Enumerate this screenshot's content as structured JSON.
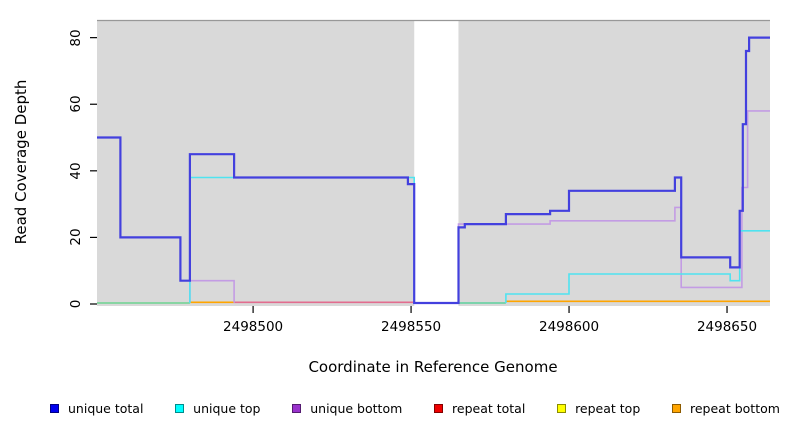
{
  "chart_data": {
    "type": "line",
    "subtype": "step-coverage-plot",
    "title": "",
    "xlabel": "Coordinate in Reference Genome",
    "ylabel": "Read Coverage Depth",
    "xlim": [
      2498450.6,
      2498663.6
    ],
    "ylim": [
      0,
      85.3
    ],
    "grid": "off",
    "panel_color": "#D9D9D9",
    "panel_top_border_color": "#989898",
    "masked_region": {
      "from": 2498551,
      "to": 2498565,
      "color": "#FFFFFF"
    },
    "x_ticks": [
      {
        "value": 2498500,
        "label": "2498500"
      },
      {
        "value": 2498550,
        "label": "2498550"
      },
      {
        "value": 2498600,
        "label": "2498600"
      },
      {
        "value": 2498650,
        "label": "2498650"
      }
    ],
    "y_ticks": [
      {
        "value": 0,
        "label": "0"
      },
      {
        "value": 20,
        "label": "20"
      },
      {
        "value": 40,
        "label": "40"
      },
      {
        "value": 60,
        "label": "60"
      },
      {
        "value": 80,
        "label": "80"
      }
    ],
    "series": [
      {
        "name": "unique total",
        "line_color": "#4340DE",
        "line_width": 2.2,
        "runs": [
          [
            [
              2498450.6,
              50
            ],
            [
              2498458,
              50
            ],
            [
              2498458,
              20
            ],
            [
              2498477,
              20
            ],
            [
              2498477,
              7
            ],
            [
              2498480,
              7
            ],
            [
              2498480,
              45
            ],
            [
              2498494,
              45
            ],
            [
              2498494,
              38
            ],
            [
              2498549,
              38
            ],
            [
              2498549,
              36
            ],
            [
              2498551,
              36
            ],
            [
              2498551,
              0.3
            ],
            [
              2498565,
              0.3
            ],
            [
              2498565,
              23
            ],
            [
              2498567,
              23
            ],
            [
              2498567,
              24
            ],
            [
              2498580,
              24
            ],
            [
              2498580,
              27
            ],
            [
              2498594,
              27
            ],
            [
              2498594,
              28
            ],
            [
              2498600,
              28
            ],
            [
              2498600,
              34
            ],
            [
              2498633.5,
              34
            ],
            [
              2498633.5,
              38
            ],
            [
              2498635.5,
              38
            ],
            [
              2498635.5,
              14
            ],
            [
              2498651,
              14
            ],
            [
              2498651,
              11
            ],
            [
              2498654,
              11
            ],
            [
              2498654,
              28
            ],
            [
              2498655,
              28
            ],
            [
              2498655,
              54
            ],
            [
              2498656,
              54
            ],
            [
              2498656,
              76
            ],
            [
              2498657,
              76
            ],
            [
              2498657,
              80
            ],
            [
              2498663.6,
              80
            ]
          ]
        ]
      },
      {
        "name": "unique top",
        "line_color": "#4FE3F0",
        "line_width": 1.6,
        "runs": [
          [
            [
              2498480,
              0.3
            ],
            [
              2498480,
              38
            ],
            [
              2498551,
              38
            ],
            [
              2498551,
              0.3
            ]
          ],
          [
            [
              2498580,
              0.3
            ],
            [
              2498580,
              3
            ],
            [
              2498600,
              3
            ],
            [
              2498600,
              9
            ],
            [
              2498651,
              9
            ],
            [
              2498651,
              7
            ],
            [
              2498654,
              7
            ],
            [
              2498654,
              22
            ],
            [
              2498663.6,
              22
            ]
          ]
        ]
      },
      {
        "name": "unique bottom",
        "line_color": "#C39CE4",
        "line_width": 1.6,
        "runs": [
          [
            [
              2498480,
              0.4
            ],
            [
              2498480,
              7
            ],
            [
              2498494,
              7
            ],
            [
              2498494,
              0.4
            ]
          ],
          [
            [
              2498565,
              0.4
            ],
            [
              2498565,
              24
            ],
            [
              2498594,
              24
            ],
            [
              2498594,
              25
            ],
            [
              2498633.5,
              25
            ],
            [
              2498633.5,
              29
            ],
            [
              2498635.5,
              29
            ],
            [
              2498635.5,
              5
            ],
            [
              2498654.7,
              5
            ],
            [
              2498654.7,
              35
            ],
            [
              2498656.5,
              35
            ],
            [
              2498656.5,
              58
            ],
            [
              2498663.6,
              58
            ]
          ]
        ]
      }
    ],
    "baseline_segments": [
      {
        "from": 2498450.6,
        "to": 2498480,
        "depth": 0.3,
        "color": "#7CD49B",
        "note": "overlapped zero lines (greenish blend)"
      },
      {
        "from": 2498480,
        "to": 2498494,
        "depth": 0.5,
        "color": "#FFA500",
        "note": "repeat bottom at ~0"
      },
      {
        "from": 2498494,
        "to": 2498551,
        "depth": 0.5,
        "color": "#E26D8F",
        "note": "repeat total at ~0 (pink blend)"
      },
      {
        "from": 2498565,
        "to": 2498580,
        "depth": 0.3,
        "color": "#6ED2A6",
        "note": "overlapped zero lines (teal blend)"
      },
      {
        "from": 2498580,
        "to": 2498663.6,
        "depth": 0.8,
        "color": "#FFA500",
        "note": "repeat bottom at ~1"
      }
    ],
    "legend": [
      {
        "label": "unique total",
        "color": "#0000EE"
      },
      {
        "label": "unique top",
        "color": "#00FFFF"
      },
      {
        "label": "unique bottom",
        "color": "#9932CC"
      },
      {
        "label": "repeat total",
        "color": "#EE0000"
      },
      {
        "label": "repeat top",
        "color": "#FFFF00"
      },
      {
        "label": "repeat bottom",
        "color": "#FFA500"
      }
    ],
    "legend_position": "bottom"
  }
}
